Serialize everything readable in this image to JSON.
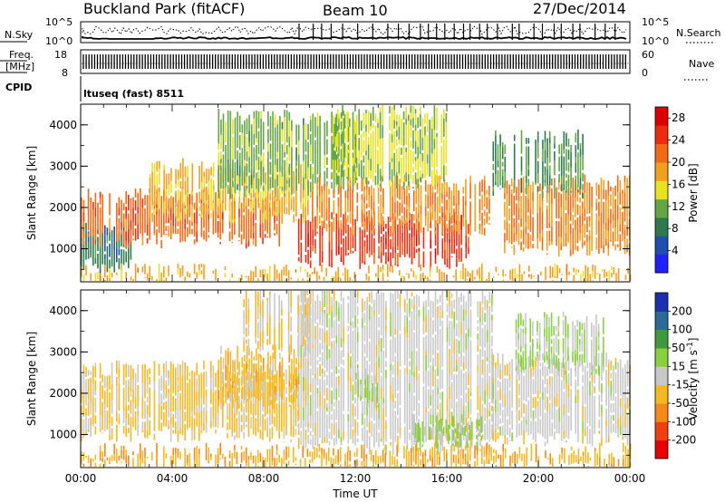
{
  "header": {
    "title": "Buckland Park (fitACF)",
    "beam": "Beam 10",
    "date": "27/Dec/2014"
  },
  "top_panels": {
    "nsky_label": "N.Sky",
    "nsky_ticks": [
      "10^5",
      "10^0"
    ],
    "nsearch_label": "N.Search",
    "nsearch_ticks": [
      "10^5",
      "10^0"
    ],
    "freq_label_1": "Freq.",
    "freq_label_2": "[MHz]",
    "freq_ticks": [
      "18",
      "8"
    ],
    "nave_label": "Nave",
    "nave_ticks": [
      "60",
      "0"
    ],
    "cpid_label": "CPID",
    "cpid_text": "ltuseq (fast) 8511"
  },
  "colors": {
    "power_scale": [
      "#2020ff",
      "#1f4fae",
      "#2c7a4e",
      "#64a644",
      "#e9e21f",
      "#f2a01c",
      "#f26a14",
      "#ee2a10",
      "#dd0000"
    ],
    "velocity_scale": [
      "#e80000",
      "#f04010",
      "#f58a18",
      "#f5b820",
      "#c8c8c8",
      "#88d040",
      "#3f9a3f",
      "#2a6a96",
      "#1b2fb0"
    ]
  },
  "chart_data": [
    {
      "type": "heatmap",
      "panel": "power",
      "ylabel": "Slant Range [km]",
      "xlabel": "",
      "y_ticks": [
        "1000",
        "2000",
        "3000",
        "4000"
      ],
      "ylim": [
        200,
        4500
      ],
      "colorbar_label": "Power [dB]",
      "colorbar_ticks": [
        "4",
        "8",
        "12",
        "16",
        "20",
        "24",
        "28"
      ],
      "colorbar_range": [
        0,
        30
      ],
      "bands": [
        {
          "t_start": 0,
          "t_end": 2.2,
          "r_low": 600,
          "r_high": 1500,
          "value": 8
        },
        {
          "t_start": 0,
          "t_end": 9,
          "r_low": 1200,
          "r_high": 2300,
          "value": 22
        },
        {
          "t_start": 3,
          "t_end": 10,
          "r_low": 1800,
          "r_high": 3000,
          "value": 17
        },
        {
          "t_start": 6,
          "t_end": 12,
          "r_low": 2400,
          "r_high": 4200,
          "value": 12
        },
        {
          "t_start": 9.5,
          "t_end": 17,
          "r_low": 700,
          "r_high": 1700,
          "value": 25
        },
        {
          "t_start": 10,
          "t_end": 18,
          "r_low": 1500,
          "r_high": 2600,
          "value": 20
        },
        {
          "t_start": 11,
          "t_end": 16,
          "r_low": 2600,
          "r_high": 4300,
          "value": 14
        },
        {
          "t_start": 18.5,
          "t_end": 24,
          "r_low": 1000,
          "r_high": 2600,
          "value": 20
        },
        {
          "t_start": 18,
          "t_end": 22,
          "r_low": 2400,
          "r_high": 3700,
          "value": 10
        },
        {
          "t_start": 0,
          "t_end": 24,
          "r_low": 250,
          "r_high": 450,
          "value": 18
        }
      ]
    },
    {
      "type": "heatmap",
      "panel": "velocity",
      "ylabel": "Slant Range [km]",
      "xlabel": "Time UT",
      "x_ticks": [
        "00:00",
        "04:00",
        "08:00",
        "12:00",
        "16:00",
        "20:00",
        "00:00"
      ],
      "xlim": [
        0,
        24
      ],
      "y_ticks": [
        "1000",
        "2000",
        "3000",
        "4000"
      ],
      "ylim": [
        200,
        4500
      ],
      "colorbar_label": "Velocity [m s",
      "colorbar_label_sup": "-1",
      "colorbar_label_end": "]",
      "colorbar_ticks": [
        "-200",
        "-100",
        "-50",
        "-15",
        "15",
        "50",
        "100",
        "200"
      ],
      "colorbar_range": [
        -250,
        250
      ],
      "bands": [
        {
          "t_start": 0,
          "t_end": 9.5,
          "r_low": 1000,
          "r_high": 2600,
          "value": -40
        },
        {
          "t_start": 6,
          "t_end": 10,
          "r_low": 1800,
          "r_high": 3000,
          "value": -55
        },
        {
          "t_start": 7,
          "t_end": 10,
          "r_low": 3000,
          "r_high": 4400,
          "value": -30
        },
        {
          "t_start": 9.5,
          "t_end": 18,
          "r_low": 700,
          "r_high": 4400,
          "value": 0
        },
        {
          "t_start": 14.5,
          "t_end": 17.5,
          "r_low": 800,
          "r_high": 1300,
          "value": 45
        },
        {
          "t_start": 12,
          "t_end": 13,
          "r_low": 1800,
          "r_high": 2400,
          "value": 40
        },
        {
          "t_start": 18,
          "t_end": 24,
          "r_low": 900,
          "r_high": 2800,
          "value": -5
        },
        {
          "t_start": 19,
          "t_end": 23,
          "r_low": 2600,
          "r_high": 3800,
          "value": 35
        },
        {
          "t_start": 0,
          "t_end": 24,
          "r_low": 250,
          "r_high": 600,
          "value": -70
        }
      ]
    }
  ]
}
